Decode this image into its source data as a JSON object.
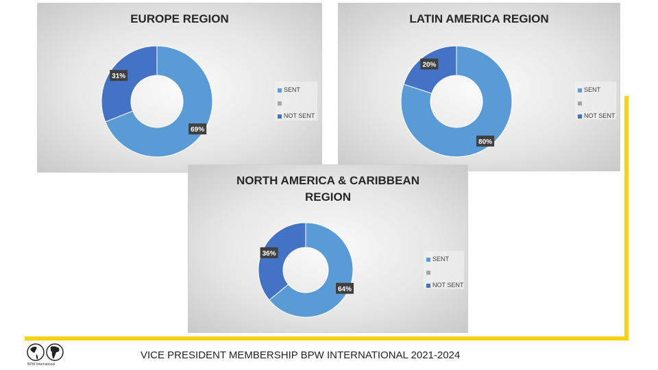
{
  "colors": {
    "sent": "#5b9bd5",
    "blank": "#a5a5a5",
    "not_sent": "#4472c4",
    "accent_line": "#f5d415"
  },
  "footer": "VICE PRESIDENT MEMBERSHIP BPW INTERNATIONAL 2021-2024",
  "logo_text": "BPW International",
  "chart_data": [
    {
      "type": "pie",
      "title": "EUROPE REGION",
      "categories": [
        "SENT",
        "",
        "NOT SENT"
      ],
      "values": [
        69,
        0,
        31
      ],
      "labels": [
        "69%",
        "",
        "31%"
      ],
      "legend": "right"
    },
    {
      "type": "pie",
      "title": "LATIN AMERICA REGION",
      "categories": [
        "SENT",
        "",
        "NOT SENT"
      ],
      "values": [
        80,
        0,
        20
      ],
      "labels": [
        "80%",
        "",
        "20%"
      ],
      "legend": "right"
    },
    {
      "type": "pie",
      "title": "NORTH AMERICA & CARIBBEAN REGION",
      "categories": [
        "SENT",
        "",
        "NOT SENT"
      ],
      "values": [
        64,
        0,
        36
      ],
      "labels": [
        "64%",
        "",
        "36%"
      ],
      "legend": "right"
    }
  ]
}
